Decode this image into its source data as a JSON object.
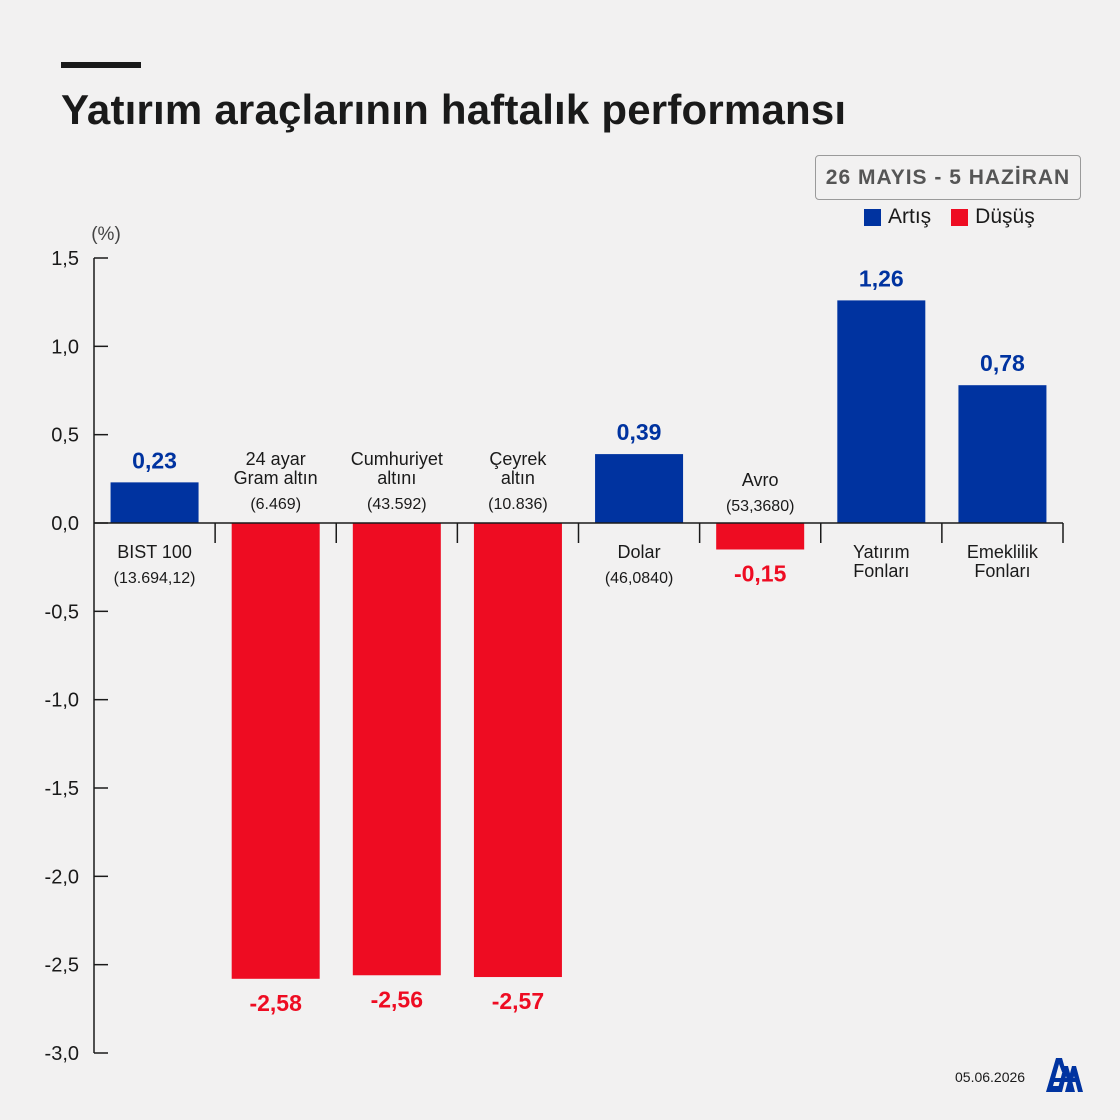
{
  "header": {
    "title": "Yatırım araçlarının haftalık performansı",
    "date_range": "26 MAYIS - 5 HAZİRAN"
  },
  "legend": {
    "items": [
      {
        "label": "Artış",
        "color": "#0033a0"
      },
      {
        "label": "Düşüş",
        "color": "#ee0c22"
      }
    ]
  },
  "chart_data": {
    "type": "bar",
    "unit_label": "(%)",
    "ylim": [
      -3.0,
      1.5
    ],
    "y_ticks": [
      1.5,
      1.0,
      0.5,
      0.0,
      -0.5,
      -1.0,
      -1.5,
      -2.0,
      -2.5,
      -3.0
    ],
    "y_tick_labels": [
      "1,5",
      "1,0",
      "0,5",
      "0,0",
      "-0,5",
      "-1,0",
      "-1,5",
      "-2,0",
      "-2,5",
      "-3,0"
    ],
    "categories": [
      {
        "name_lines": [
          "BIST 100"
        ],
        "price": "(13.694,12)"
      },
      {
        "name_lines": [
          "24 ayar",
          "Gram altın"
        ],
        "price": "(6.469)"
      },
      {
        "name_lines": [
          "Cumhuriyet",
          "altını"
        ],
        "price": "(43.592)"
      },
      {
        "name_lines": [
          "Çeyrek",
          "altın"
        ],
        "price": "(10.836)"
      },
      {
        "name_lines": [
          "Dolar"
        ],
        "price": "(46,0840)"
      },
      {
        "name_lines": [
          "Avro"
        ],
        "price": "(53,3680)"
      },
      {
        "name_lines": [
          "Yatırım",
          "Fonları"
        ],
        "price": ""
      },
      {
        "name_lines": [
          "Emeklilik",
          "Fonları"
        ],
        "price": ""
      }
    ],
    "values": [
      0.23,
      -2.58,
      -2.56,
      -2.57,
      0.39,
      -0.15,
      1.26,
      0.78
    ],
    "value_labels": [
      "0,23",
      "-2,58",
      "-2,56",
      "-2,57",
      "0,39",
      "-0,15",
      "1,26",
      "0,78"
    ],
    "colors": {
      "positive": "#0033a0",
      "negative": "#ee0c22",
      "axis": "#1a1a1a"
    },
    "grid": false,
    "legend_position": "top-right"
  },
  "footer": {
    "date": "05.06.2026",
    "logo_icon": "aa-logo-icon"
  }
}
